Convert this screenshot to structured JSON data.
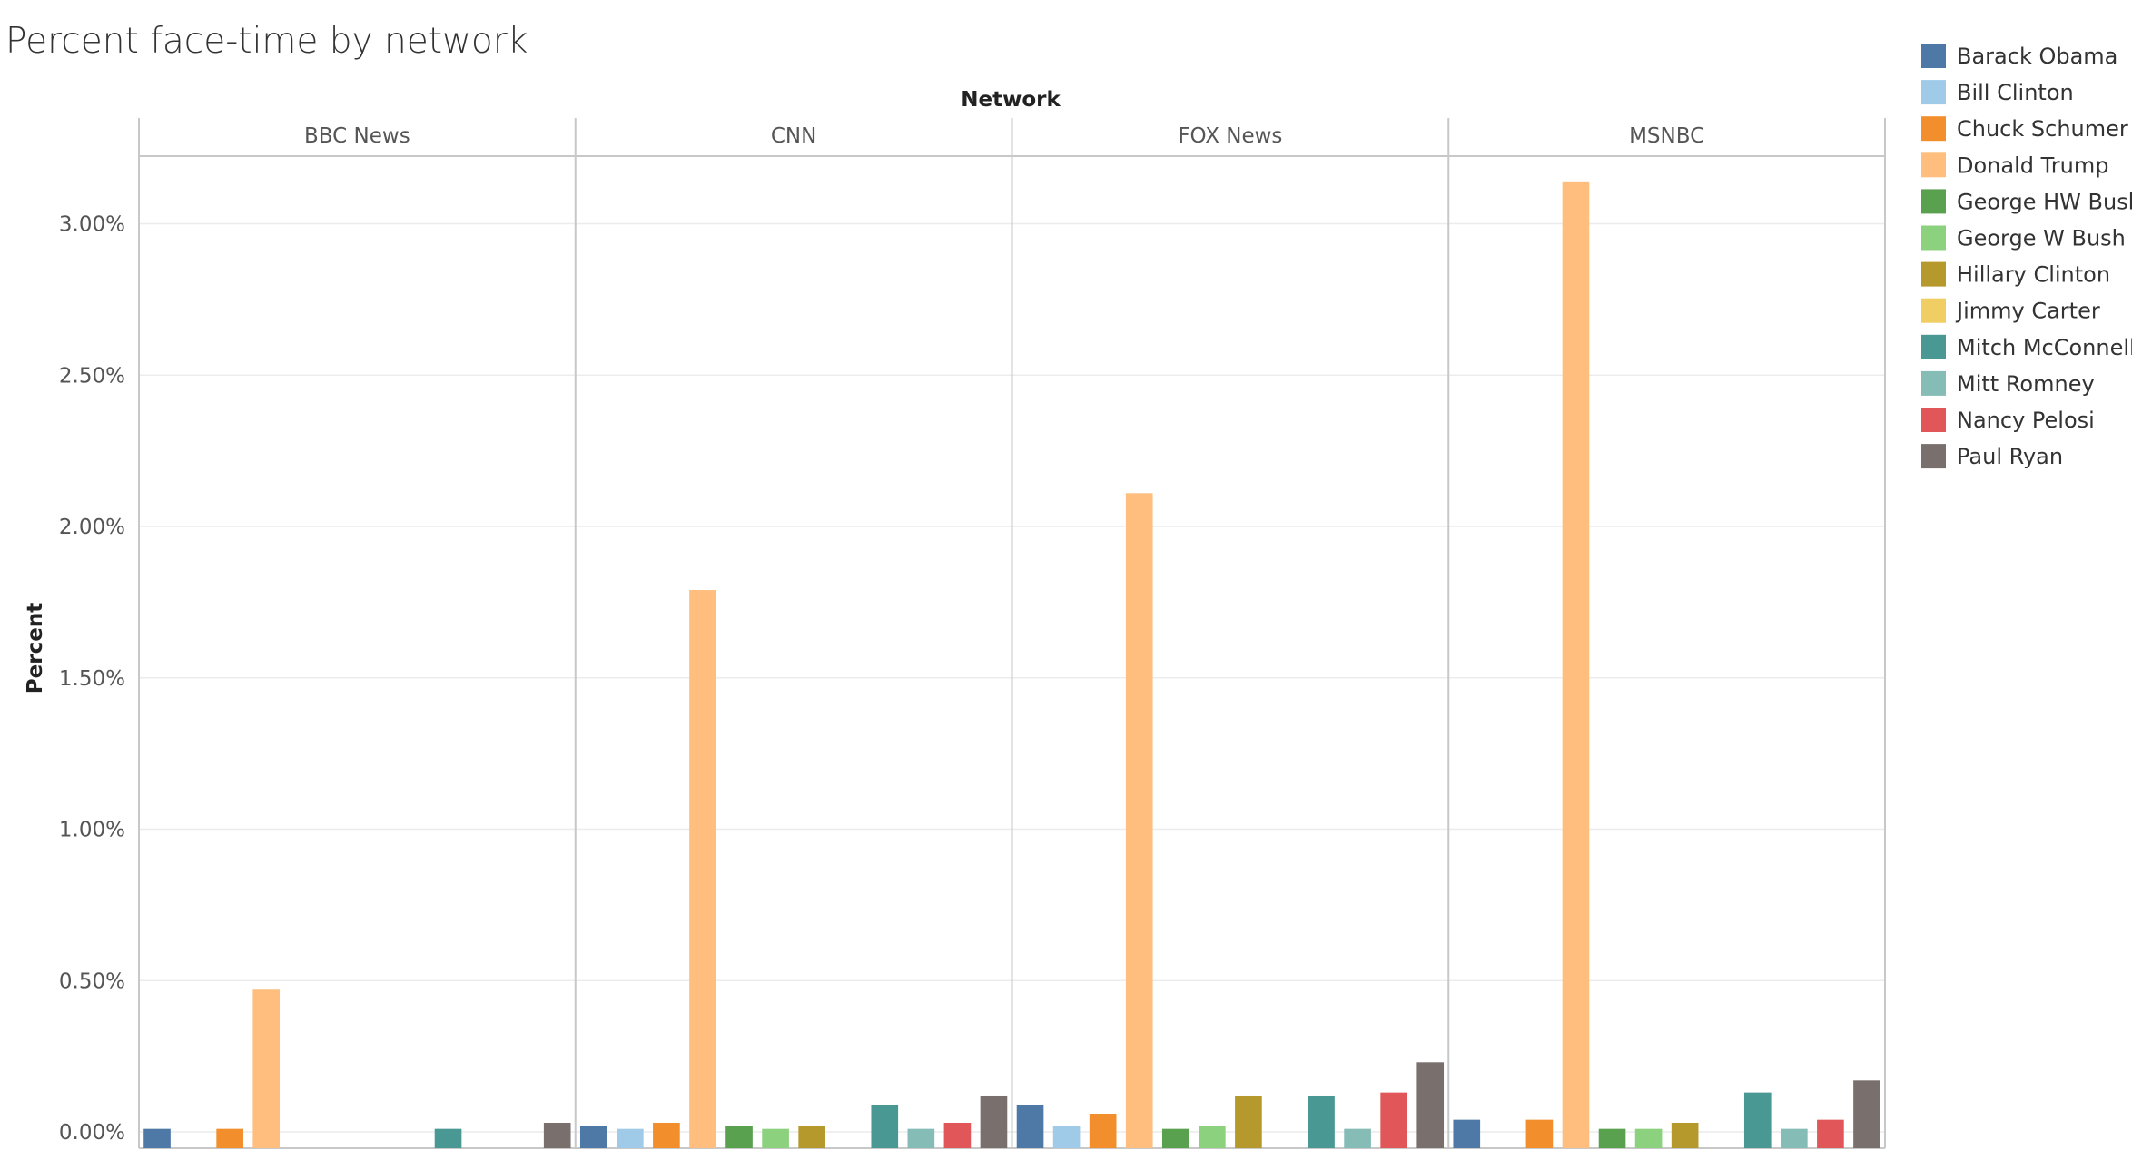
{
  "chart_data": {
    "type": "bar",
    "title": "Percent face-time by network",
    "column_axis_title": "Network",
    "ylabel": "Percent",
    "ylim": [
      -0.06,
      3.3
    ],
    "y_ticks": [
      0,
      0.5,
      1.0,
      1.5,
      2.0,
      2.5,
      3.0
    ],
    "y_tick_labels": [
      "0.00%",
      "0.50%",
      "1.00%",
      "1.50%",
      "2.00%",
      "2.50%",
      "3.00%"
    ],
    "grid": true,
    "legend_position": "right",
    "facets": [
      "BBC News",
      "CNN",
      "FOX News",
      "MSNBC"
    ],
    "series": [
      {
        "name": "Barack Obama",
        "color": "#4e79a7",
        "values": [
          0.01,
          0.02,
          0.09,
          0.04
        ]
      },
      {
        "name": "Bill Clinton",
        "color": "#a0cbe8",
        "values": [
          null,
          0.01,
          0.02,
          null
        ]
      },
      {
        "name": "Chuck Schumer",
        "color": "#f28e2b",
        "values": [
          0.01,
          0.03,
          0.06,
          0.04
        ]
      },
      {
        "name": "Donald Trump",
        "color": "#ffbe7d",
        "values": [
          0.47,
          1.79,
          2.11,
          3.14
        ]
      },
      {
        "name": "George HW Bush",
        "color": "#59a14f",
        "values": [
          null,
          0.02,
          0.01,
          0.01
        ]
      },
      {
        "name": "George W Bush",
        "color": "#8cd17d",
        "values": [
          null,
          0.01,
          0.02,
          0.01
        ]
      },
      {
        "name": "Hillary Clinton",
        "color": "#b6992d",
        "values": [
          null,
          0.02,
          0.12,
          0.03
        ]
      },
      {
        "name": "Jimmy Carter",
        "color": "#f1ce63",
        "values": [
          null,
          null,
          null,
          null
        ]
      },
      {
        "name": "Mitch McConnell",
        "color": "#499894",
        "values": [
          0.01,
          0.09,
          0.12,
          0.13
        ]
      },
      {
        "name": "Mitt Romney",
        "color": "#86bcb6",
        "values": [
          null,
          0.01,
          0.01,
          0.01
        ]
      },
      {
        "name": "Nancy Pelosi",
        "color": "#e15759",
        "values": [
          null,
          0.03,
          0.13,
          0.04
        ]
      },
      {
        "name": "Paul Ryan",
        "color": "#79706e",
        "values": [
          0.03,
          0.12,
          0.23,
          0.17
        ]
      }
    ]
  }
}
